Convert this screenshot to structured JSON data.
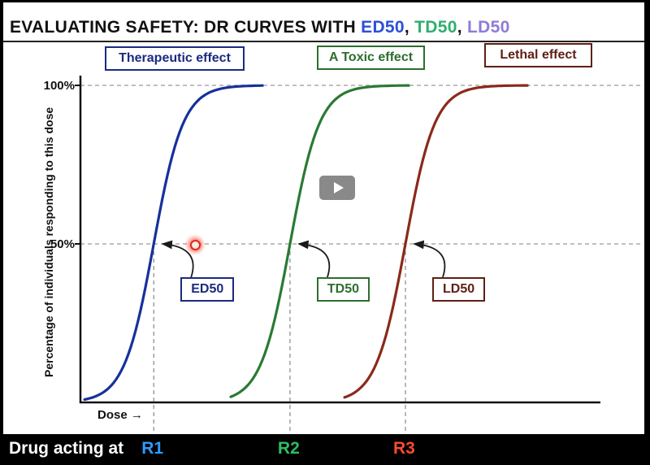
{
  "title": {
    "main": "EVALUATING SAFETY: DR CURVES WITH ",
    "separator": ", ",
    "terms": [
      {
        "label": "ED50",
        "color": "#2c4fd8"
      },
      {
        "label": "TD50",
        "color": "#2fae6e"
      },
      {
        "label": "LD50",
        "color": "#8e7cd8"
      }
    ]
  },
  "legend": [
    {
      "label": "Therapeutic effect",
      "color": "#1b2a80"
    },
    {
      "label": "A Toxic effect",
      "color": "#2d6e2d"
    },
    {
      "label": "Lethal effect",
      "color": "#5e2014"
    }
  ],
  "chart_data": {
    "type": "line",
    "curve_shape": "sigmoid",
    "xlabel": "Dose →",
    "ylabel": "Percentage of individuals responding to this dose",
    "yticks": [
      "100%",
      "50%"
    ],
    "ylim": [
      0,
      100
    ],
    "x_axis_scale": "unlabeled dose scale",
    "gridlines": "dashed horizontal at 50% and 100%; dashed vertical drop lines at each 50% dose",
    "annotations_at_percent": 50,
    "steepness": 0.055,
    "series": [
      {
        "name": "Therapeutic effect",
        "annotation": "ED50",
        "color": "#16309c",
        "x50_frac": 0.141,
        "start_frac": 0.008,
        "end_frac": 0.352
      },
      {
        "name": "A Toxic effect",
        "annotation": "TD50",
        "color": "#2a7a33",
        "x50_frac": 0.403,
        "start_frac": 0.289,
        "end_frac": 0.633
      },
      {
        "name": "Lethal effect",
        "annotation": "LD50",
        "color": "#8a2a1a",
        "x50_frac": 0.625,
        "start_frac": 0.508,
        "end_frac": 0.86
      }
    ]
  },
  "bottom_bar": {
    "prefix": "Drug acting at",
    "receptors": [
      {
        "label": "R1",
        "color": "#2f9bff"
      },
      {
        "label": "R2",
        "color": "#2dbd63"
      },
      {
        "label": "R3",
        "color": "#ff4a2d"
      }
    ]
  },
  "player": {
    "play_icon": "play-triangle"
  }
}
